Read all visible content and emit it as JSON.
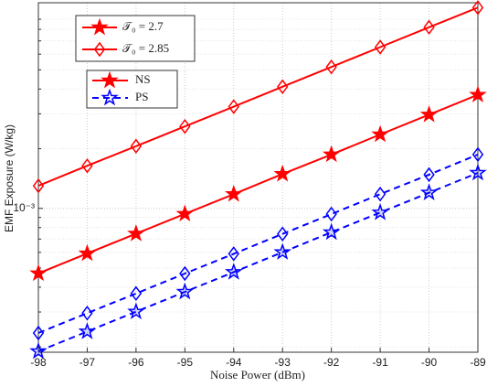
{
  "chart_data": {
    "type": "line",
    "x_label": "Noise Power (dBm)",
    "y_label": "EMF Exposure (W/kg)",
    "x": [
      -98,
      -97,
      -96,
      -95,
      -94,
      -93,
      -92,
      -91,
      -90,
      -89
    ],
    "xlim": [
      -98,
      -89
    ],
    "xticks": [
      -98,
      -97,
      -96,
      -95,
      -94,
      -93,
      -92,
      -91,
      -90,
      -89
    ],
    "ylim": [
      0.000188,
      0.0109
    ],
    "yticks": [
      {
        "value": 0.001,
        "label": "10⁻³"
      }
    ],
    "yminorticks": [
      0.0002,
      0.0003,
      0.0004,
      0.0005,
      0.0006,
      0.0007,
      0.0008,
      0.0009,
      0.002,
      0.003,
      0.004,
      0.005,
      0.006,
      0.007,
      0.008,
      0.009
    ],
    "log_y": true,
    "grid": true,
    "series": [
      {
        "color": "#ff0000",
        "dash": false,
        "marker": "star",
        "filled": true,
        "values": [
          0.00047,
          0.000592,
          0.000745,
          0.000938,
          0.00118,
          0.00149,
          0.00187,
          0.00236,
          0.00297,
          0.00374
        ]
      },
      {
        "color": "#ff0000",
        "dash": false,
        "marker": "diamond",
        "filled": false,
        "values": [
          0.0013,
          0.00164,
          0.00206,
          0.00259,
          0.00326,
          0.00411,
          0.00517,
          0.00651,
          0.0082,
          0.0103
        ]
      },
      {
        "color": "#0000ff",
        "dash": true,
        "marker": "diamond",
        "filled": false,
        "values": [
          0.000235,
          0.000296,
          0.000372,
          0.000469,
          0.00059,
          0.000743,
          0.000936,
          0.00118,
          0.00148,
          0.00187
        ]
      },
      {
        "color": "#0000ff",
        "dash": true,
        "marker": "star",
        "filled": true,
        "values": [
          0.00019,
          0.000239,
          0.000301,
          0.000379,
          0.000477,
          0.000601,
          0.000757,
          0.000953,
          0.0012,
          0.00151
        ]
      }
    ],
    "legend_markers": [
      {
        "label": "𝒯₀ = 2.7",
        "color": "#ff0000",
        "marker": "star",
        "filled": true
      },
      {
        "label": "𝒯₀ = 2.85",
        "color": "#ff0000",
        "marker": "diamond",
        "filled": false
      }
    ],
    "legend_lines": [
      {
        "label": "NS",
        "color": "#ff0000",
        "dash": false,
        "marker": "star",
        "filled": true
      },
      {
        "label": "PS",
        "color": "#0000ff",
        "dash": true,
        "marker": "star",
        "filled": false
      }
    ]
  }
}
